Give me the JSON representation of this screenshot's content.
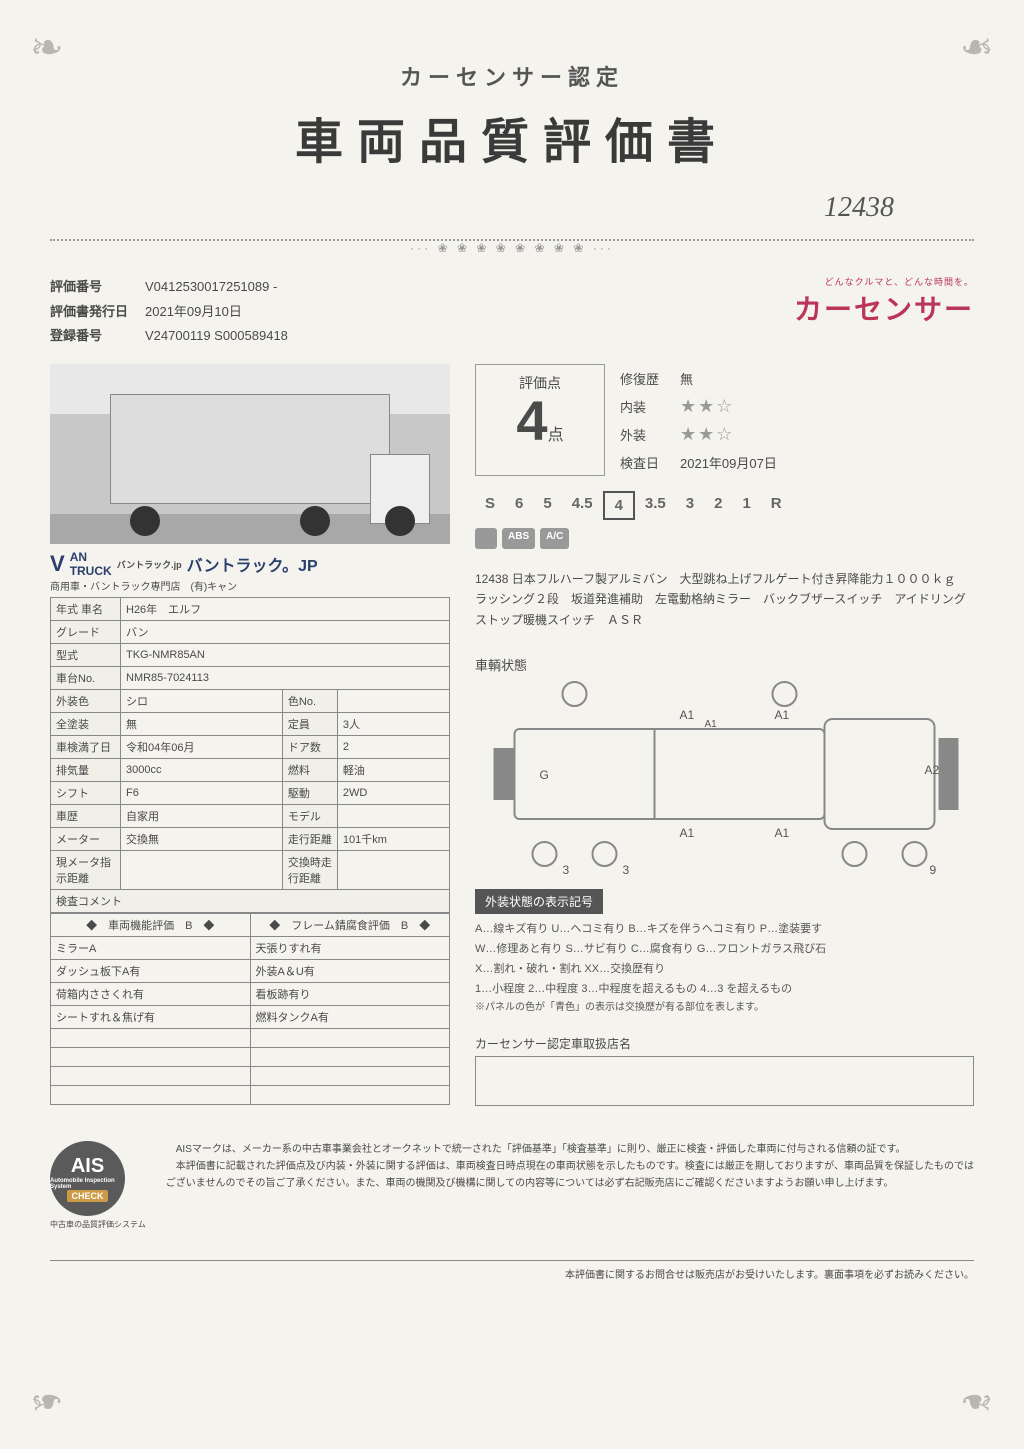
{
  "header": {
    "subtitle": "カーセンサー認定",
    "title": "車両品質評価書",
    "handwritten": "12438"
  },
  "brand": {
    "tagline": "どんなクルマと、どんな時間を。",
    "logo": "カーセンサー"
  },
  "eval": {
    "num_label": "評価番号",
    "num_value": "V0412530017251089 -",
    "date_label": "評価書発行日",
    "date_value": "2021年09月10日",
    "reg_label": "登録番号",
    "reg_value": "V24700119 S000589418"
  },
  "banner": {
    "line1a": "バントラック.jp",
    "line1b": "バントラック。JP",
    "line2": "商用車・バントラック専門店　(有)キャン"
  },
  "spec": {
    "rows": [
      {
        "l1": "年式 車名",
        "v1": "H26年　エルフ",
        "span": 3
      },
      {
        "l1": "グレード",
        "v1": "バン",
        "span": 3
      },
      {
        "l1": "型式",
        "v1": "TKG-NMR85AN",
        "span": 3
      },
      {
        "l1": "車台No.",
        "v1": "NMR85-7024113",
        "span": 3
      },
      {
        "l1": "外装色",
        "v1": "シロ",
        "l2": "色No.",
        "v2": ""
      },
      {
        "l1": "全塗装",
        "v1": "無",
        "l2": "定員",
        "v2": "3人"
      },
      {
        "l1": "車検満了日",
        "v1": "令和04年06月",
        "l2": "ドア数",
        "v2": "2"
      },
      {
        "l1": "排気量",
        "v1": "3000cc",
        "l2": "燃料",
        "v2": "軽油"
      },
      {
        "l1": "シフト",
        "v1": "F6",
        "l2": "駆動",
        "v2": "2WD"
      },
      {
        "l1": "車歴",
        "v1": "自家用",
        "l2": "モデル",
        "v2": ""
      },
      {
        "l1": "メーター",
        "v1": "交換無",
        "l2": "走行距離",
        "v2": "101千km"
      },
      {
        "l1": "現メータ指示距離",
        "v1": "",
        "l2": "交換時走行距離",
        "v2": ""
      }
    ]
  },
  "comment": {
    "header": "検査コメント",
    "col1_header": "◆　車両機能評価　B　◆",
    "col2_header": "◆　フレーム錆腐食評価　B　◆",
    "rows": [
      {
        "c1": "ミラーA",
        "c2": "天張りすれ有"
      },
      {
        "c1": "ダッシュ板下A有",
        "c2": "外装A＆U有"
      },
      {
        "c1": "荷箱内ささくれ有",
        "c2": "看板跡有り"
      },
      {
        "c1": "シートすれ＆焦げ有",
        "c2": "燃料タンクA有"
      },
      {
        "c1": "",
        "c2": ""
      },
      {
        "c1": "",
        "c2": ""
      },
      {
        "c1": "",
        "c2": ""
      },
      {
        "c1": "",
        "c2": ""
      }
    ]
  },
  "score": {
    "label": "評価点",
    "value": "4",
    "unit": "点",
    "repair_label": "修復歴",
    "repair_value": "無",
    "interior_label": "内装",
    "interior_stars": "★★☆",
    "exterior_label": "外装",
    "exterior_stars": "★★☆",
    "inspect_label": "検査日",
    "inspect_value": "2021年09月07日",
    "scale": [
      "S",
      "6",
      "5",
      "4.5",
      "4",
      "3.5",
      "3",
      "2",
      "1",
      "R"
    ],
    "scale_selected": "4",
    "badges": [
      "　",
      "ABS",
      "A/C"
    ]
  },
  "description": "12438 日本フルハーフ製アルミバン　大型跳ね上げフルゲート付き昇降能力１０００ｋｇ　ラッシング２段　坂道発進補助　左電動格納ミラー　バックブザースイッチ　アイドリングストップ暖機スイッチ　ＡＳＲ",
  "diagram": {
    "label": "車輌状態",
    "marks": {
      "a1": "A1",
      "a2": "A2",
      "g": "G",
      "n3": "3",
      "n9": "9"
    }
  },
  "legend": {
    "header": "外装状態の表示記号",
    "lines": [
      "A…線キズ有り U…ヘコミ有り B…キズを伴うヘコミ有り P…塗装要す",
      "W…修理あと有り S…サビ有り C…腐食有り G…フロントガラス飛び石",
      "X…割れ・破れ・割れ XX…交換歴有り",
      "1…小程度 2…中程度 3…中程度を超えるもの 4…3 を超えるもの"
    ],
    "note": "※パネルの色が「青色」の表示は交換歴が有る部位を表します。"
  },
  "dealer": {
    "label": "カーセンサー認定車取扱店名"
  },
  "ais": {
    "big": "AIS",
    "check": "CHECK",
    "sub": "Automobile Inspection System",
    "caption": "中古車の品質評価システム"
  },
  "footer_text": "　AISマークは、メーカー系の中古車事業会社とオークネットで統一された「評価基準」「検査基準」に則り、厳正に検査・評価した車両に付与される信頼の証です。\n　本評価書に記載された評価点及び内装・外装に関する評価は、車両検査日時点現在の車両状態を示したものです。検査には厳正を期しておりますが、車両品質を保証したものではございませんのでその旨ご了承ください。また、車両の機関及び機構に関しての内容等については必ず右記販売店にご確認くださいますようお願い申し上げます。",
  "footer_note": "本評価書に関するお問合せは販売店がお受けいたします。裏面事項を必ずお読みください。"
}
